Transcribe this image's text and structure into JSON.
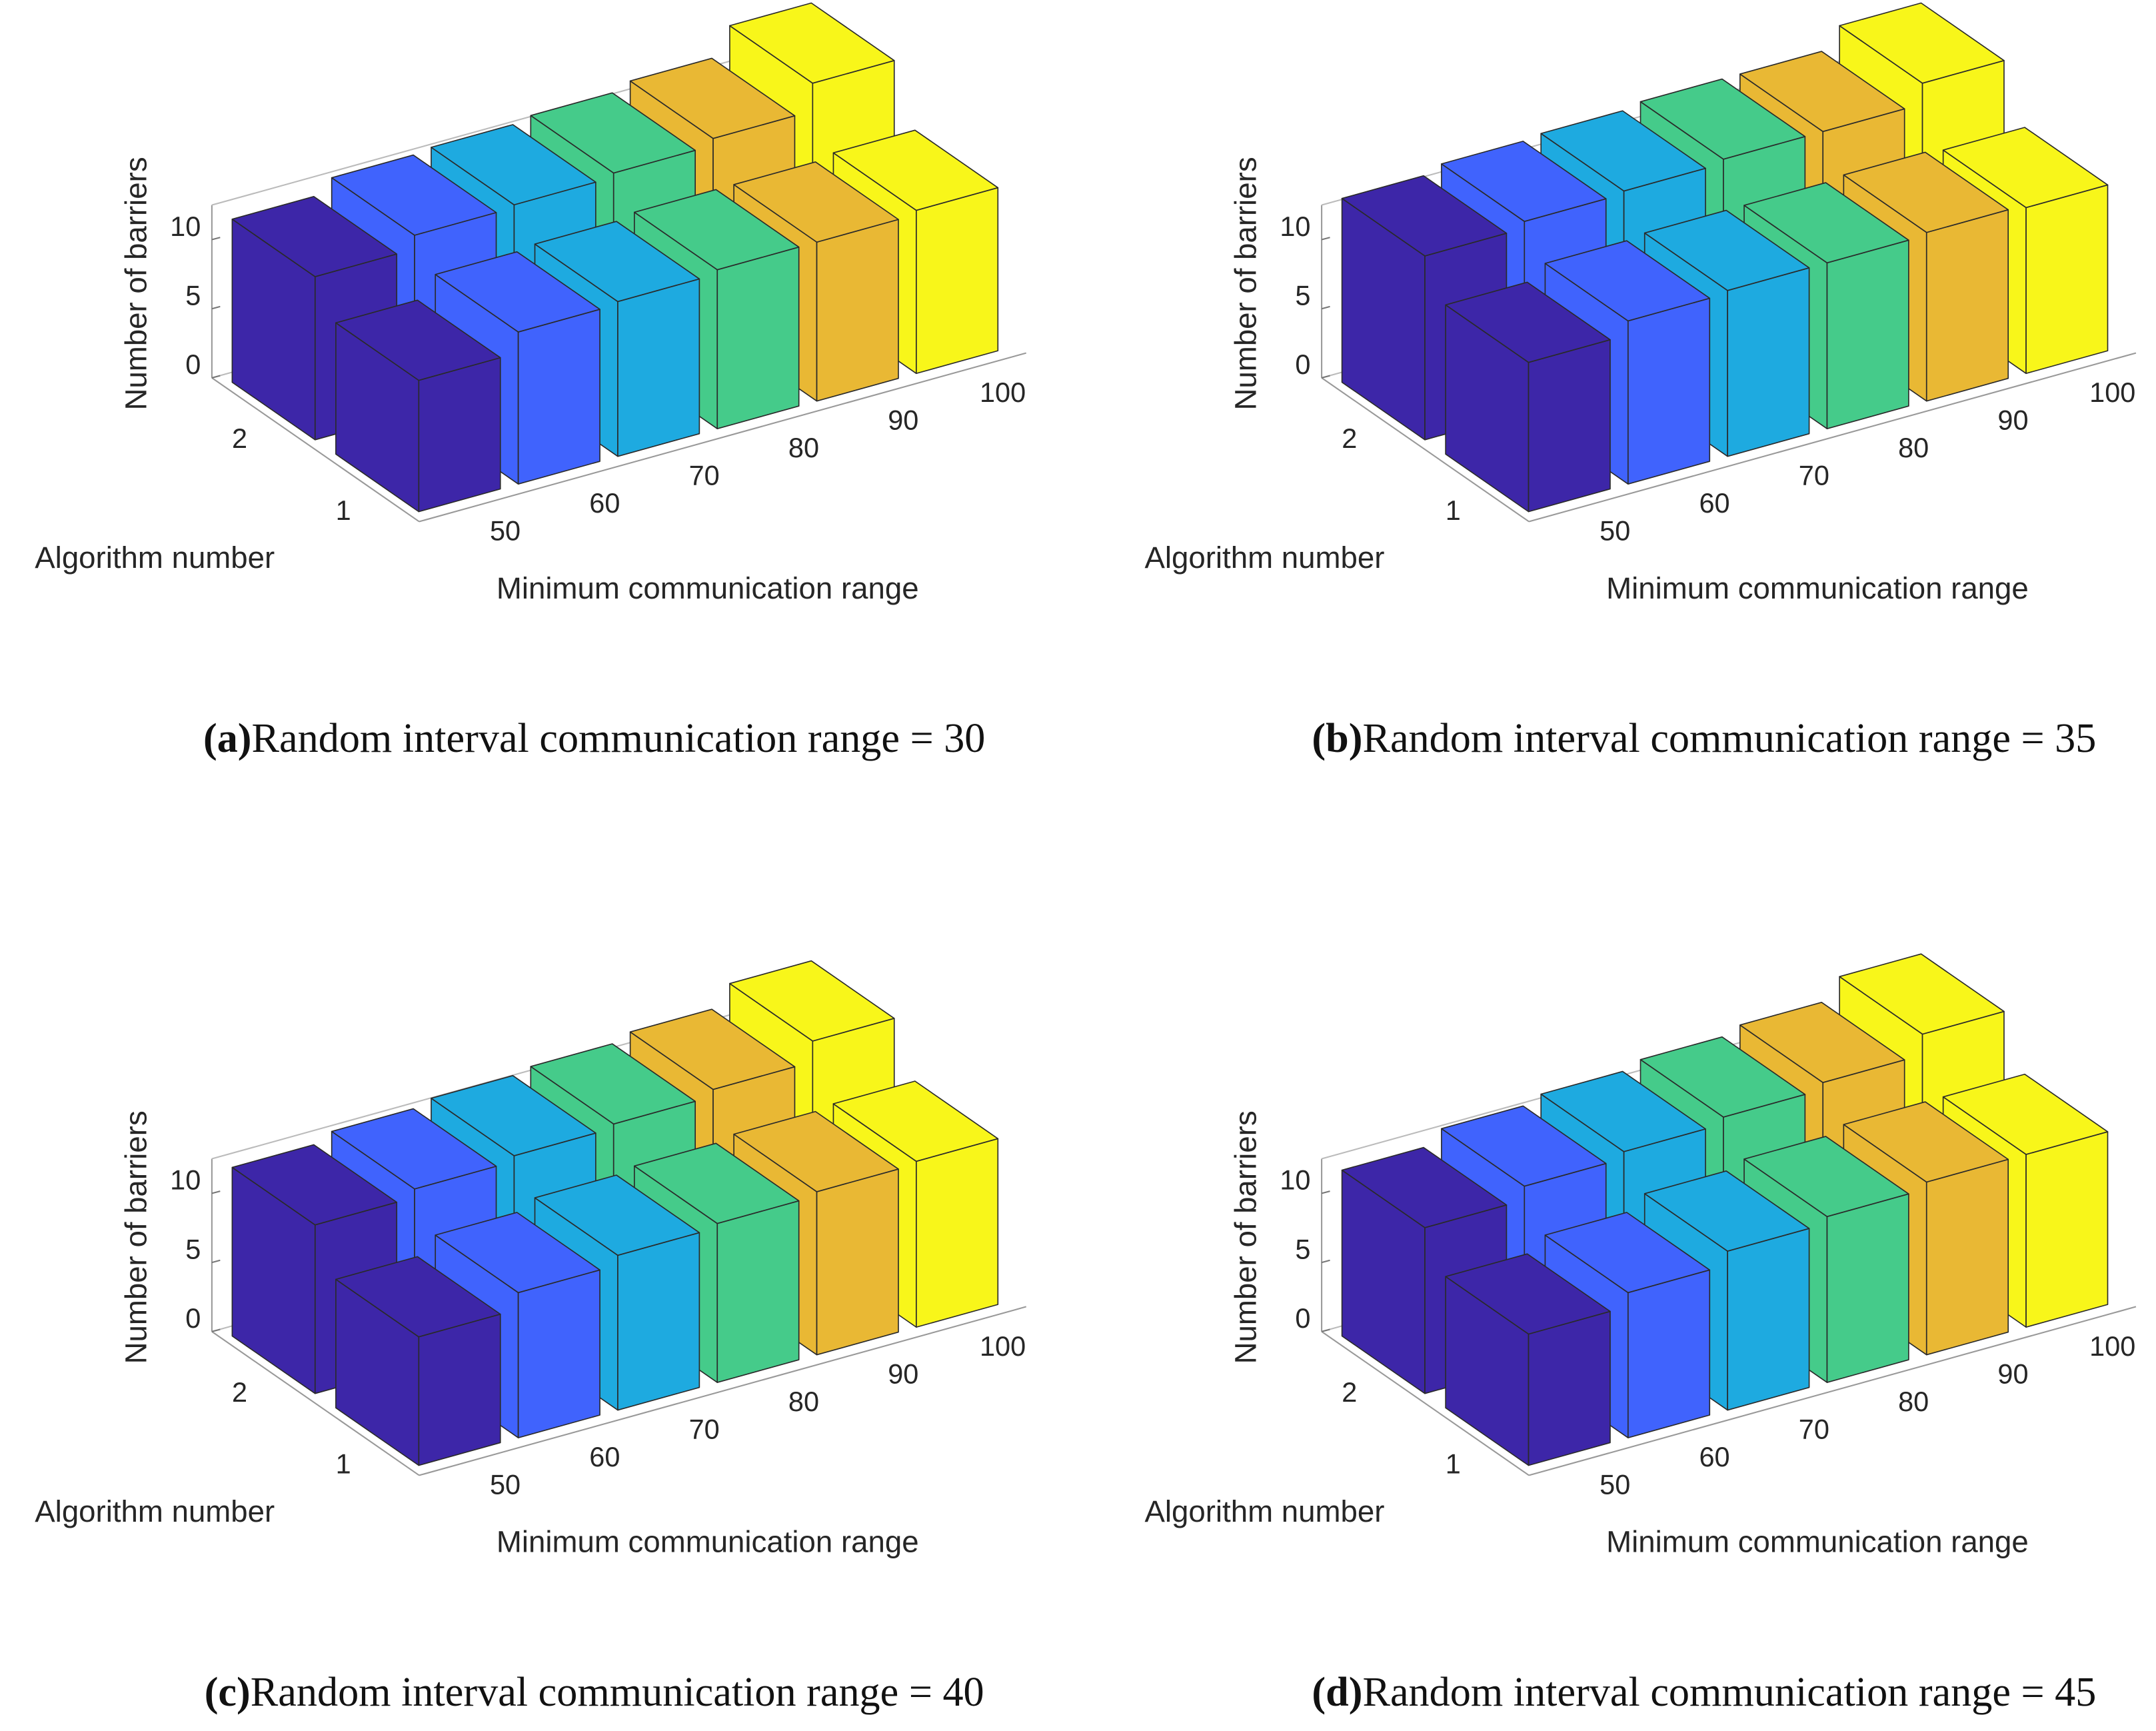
{
  "chart_data": [
    {
      "type": "bar3d",
      "xlabel": "Minimum communication range",
      "ylabel": "Algorithm number",
      "zlabel": "Number of barriers",
      "categories": [
        "50",
        "60",
        "70",
        "80",
        "90",
        "100"
      ],
      "rows": [
        "1",
        "2"
      ],
      "values": [
        [
          9.5,
          11,
          11.2,
          11.5,
          11.5,
          11.8
        ],
        [
          11.8,
          12.8,
          13,
          13.3,
          13.8,
          15.8
        ]
      ],
      "colors": [
        "#3d26a8",
        "#4063fd",
        "#1eaae0",
        "#45cb8a",
        "#e9b834",
        "#f8f61a"
      ],
      "zlim": [
        0,
        12.5
      ],
      "zticks": [
        0,
        5,
        10
      ],
      "caption_label": "(a)",
      "caption": "Random interval communication range = 30"
    },
    {
      "type": "bar3d",
      "xlabel": "Minimum communication range",
      "ylabel": "Algorithm number",
      "zlabel": "Number of barriers",
      "categories": [
        "50",
        "60",
        "70",
        "80",
        "90",
        "100"
      ],
      "rows": [
        "1",
        "2"
      ],
      "values": [
        [
          10.8,
          11.8,
          12,
          12,
          12.2,
          12
        ],
        [
          13.3,
          13.8,
          14,
          14.3,
          14.3,
          15.8
        ]
      ],
      "colors": [
        "#3d26a8",
        "#4063fd",
        "#1eaae0",
        "#45cb8a",
        "#e9b834",
        "#f8f61a"
      ],
      "zlim": [
        0,
        12.5
      ],
      "zticks": [
        0,
        5,
        10
      ],
      "caption_label": "(b)",
      "caption": "Random interval communication range = 35"
    },
    {
      "type": "bar3d",
      "xlabel": "Minimum communication range",
      "ylabel": "Algorithm number",
      "zlabel": "Number of barriers",
      "categories": [
        "50",
        "60",
        "70",
        "80",
        "90",
        "100"
      ],
      "rows": [
        "1",
        "2"
      ],
      "values": [
        [
          9.3,
          10.5,
          11.2,
          11.5,
          11.8,
          12
        ],
        [
          12.2,
          12.8,
          13.2,
          13.5,
          14,
          15.5
        ]
      ],
      "colors": [
        "#3d26a8",
        "#4063fd",
        "#1eaae0",
        "#45cb8a",
        "#e9b834",
        "#f8f61a"
      ],
      "zlim": [
        0,
        12.5
      ],
      "zticks": [
        0,
        5,
        10
      ],
      "caption_label": "(c)",
      "caption": "Random interval communication range = 40"
    },
    {
      "type": "bar3d",
      "xlabel": "Minimum communication range",
      "ylabel": "Algorithm number",
      "zlabel": "Number of barriers",
      "categories": [
        "50",
        "60",
        "70",
        "80",
        "90",
        "100"
      ],
      "rows": [
        "1",
        "2"
      ],
      "values": [
        [
          9.5,
          10.5,
          11.5,
          12,
          12.5,
          12.5
        ],
        [
          12,
          13,
          13.5,
          14,
          14.5,
          16
        ]
      ],
      "colors": [
        "#3d26a8",
        "#4063fd",
        "#1eaae0",
        "#45cb8a",
        "#e9b834",
        "#f8f61a"
      ],
      "zlim": [
        0,
        12.5
      ],
      "zticks": [
        0,
        5,
        10
      ],
      "caption_label": "(d)",
      "caption": "Random interval communication range = 45"
    }
  ]
}
